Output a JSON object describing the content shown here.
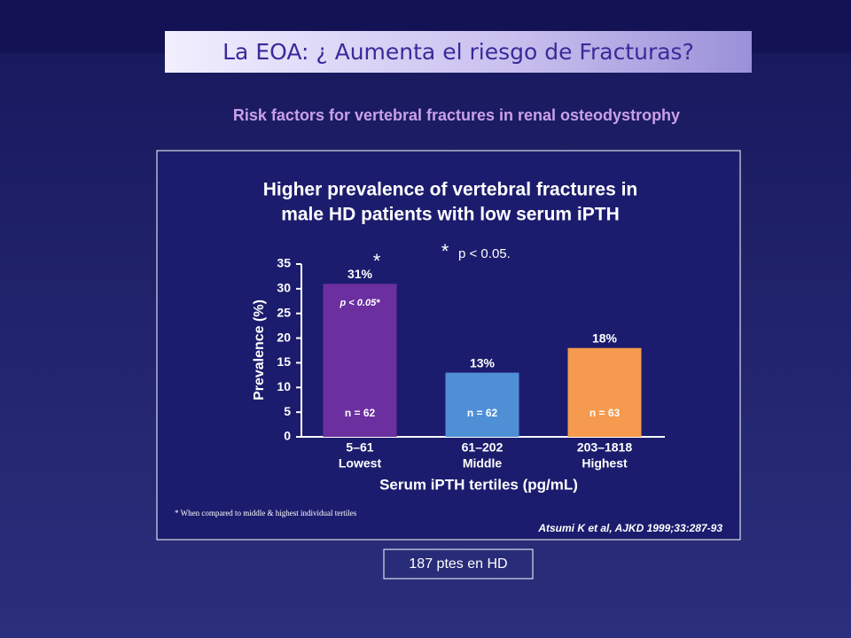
{
  "slide": {
    "title": "La EOA: ¿ Aumenta el riesgo de Fracturas?",
    "subtitle": "Risk factors for vertebral fractures in renal osteodystrophy",
    "footer_box": "187 ptes en HD"
  },
  "chart_data": {
    "type": "bar",
    "title": [
      "Higher prevalence of vertebral fractures in",
      "male HD patients with low serum iPTH"
    ],
    "categories": [
      "5–61",
      "61–202",
      "203–1818"
    ],
    "category_groups": [
      "Lowest",
      "Middle",
      "Highest"
    ],
    "values": [
      31,
      13,
      18
    ],
    "value_labels": [
      "31%",
      "13%",
      "18%"
    ],
    "n_labels": [
      "n = 62",
      "n = 62",
      "n = 63"
    ],
    "colors": [
      "#6b2fa0",
      "#4f8fd6",
      "#f59a4e"
    ],
    "bar_annotation": "p < 0.05*",
    "significance_marker": "*",
    "legend_marker": "*",
    "legend_text": "p < 0.05.",
    "xlabel": "Serum iPTH tertiles (pg/mL)",
    "ylabel": "Prevalence (%)",
    "ylim": [
      0,
      35
    ],
    "yticks": [
      0,
      5,
      10,
      15,
      20,
      25,
      30,
      35
    ],
    "footnote": "* When compared to middle & highest individual tertiles",
    "citation": "Atsumi K et al, AJKD 1999;33:287-93"
  }
}
